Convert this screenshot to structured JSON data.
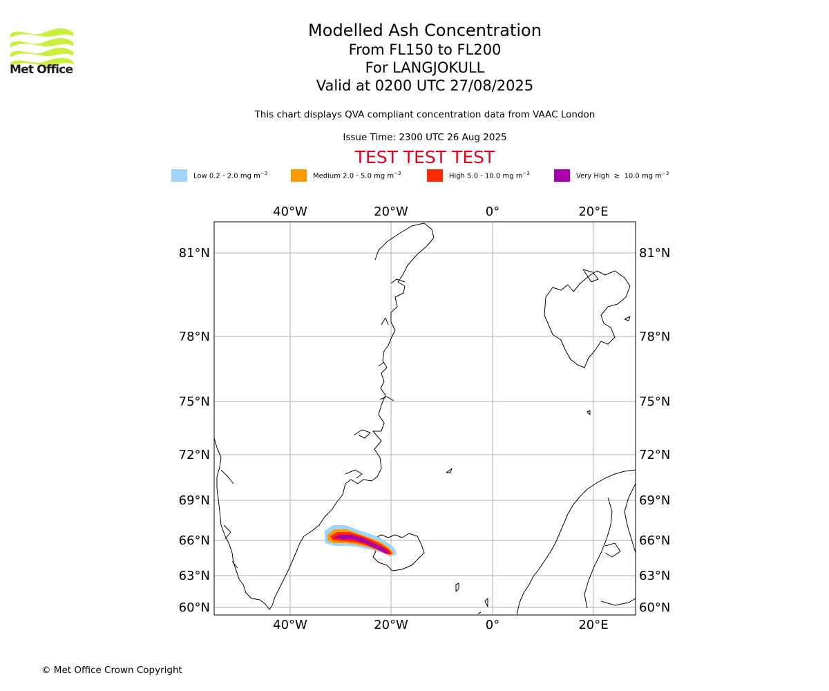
{
  "logo": {
    "text": "Met Office",
    "color": "#c8f03c"
  },
  "title": {
    "main": "Modelled Ash Concentration",
    "levels": "From FL150 to FL200",
    "volcano": "For LANGJOKULL",
    "valid": "Valid at 0200 UTC 27/08/2025"
  },
  "note": "This chart displays QVA compliant concentration data from VAAC London",
  "issue_time": "Issue Time: 2300 UTC 26 Aug 2025",
  "test_banner": "TEST TEST TEST",
  "legend": [
    {
      "label": "Low 0.2 - 2.0 mg m",
      "sup": "−3",
      "color": "#a1d4fa"
    },
    {
      "label": "Medium 2.0 - 5.0 mg m",
      "sup": "−3",
      "color": "#ff9900"
    },
    {
      "label": "High 5.0 - 10.0 mg m",
      "sup": "−3",
      "color": "#ff2a00"
    },
    {
      "label": "Very High  ≥  10.0 mg m",
      "sup": "−3",
      "color": "#aa00aa"
    }
  ],
  "map": {
    "lon_ticks": [
      "40°W",
      "20°W",
      "0°",
      "20°E"
    ],
    "lat_ticks": [
      "81°N",
      "78°N",
      "75°N",
      "72°N",
      "69°N",
      "66°N",
      "63°N",
      "60°N"
    ]
  },
  "copyright": "© Met Office Crown Copyright"
}
